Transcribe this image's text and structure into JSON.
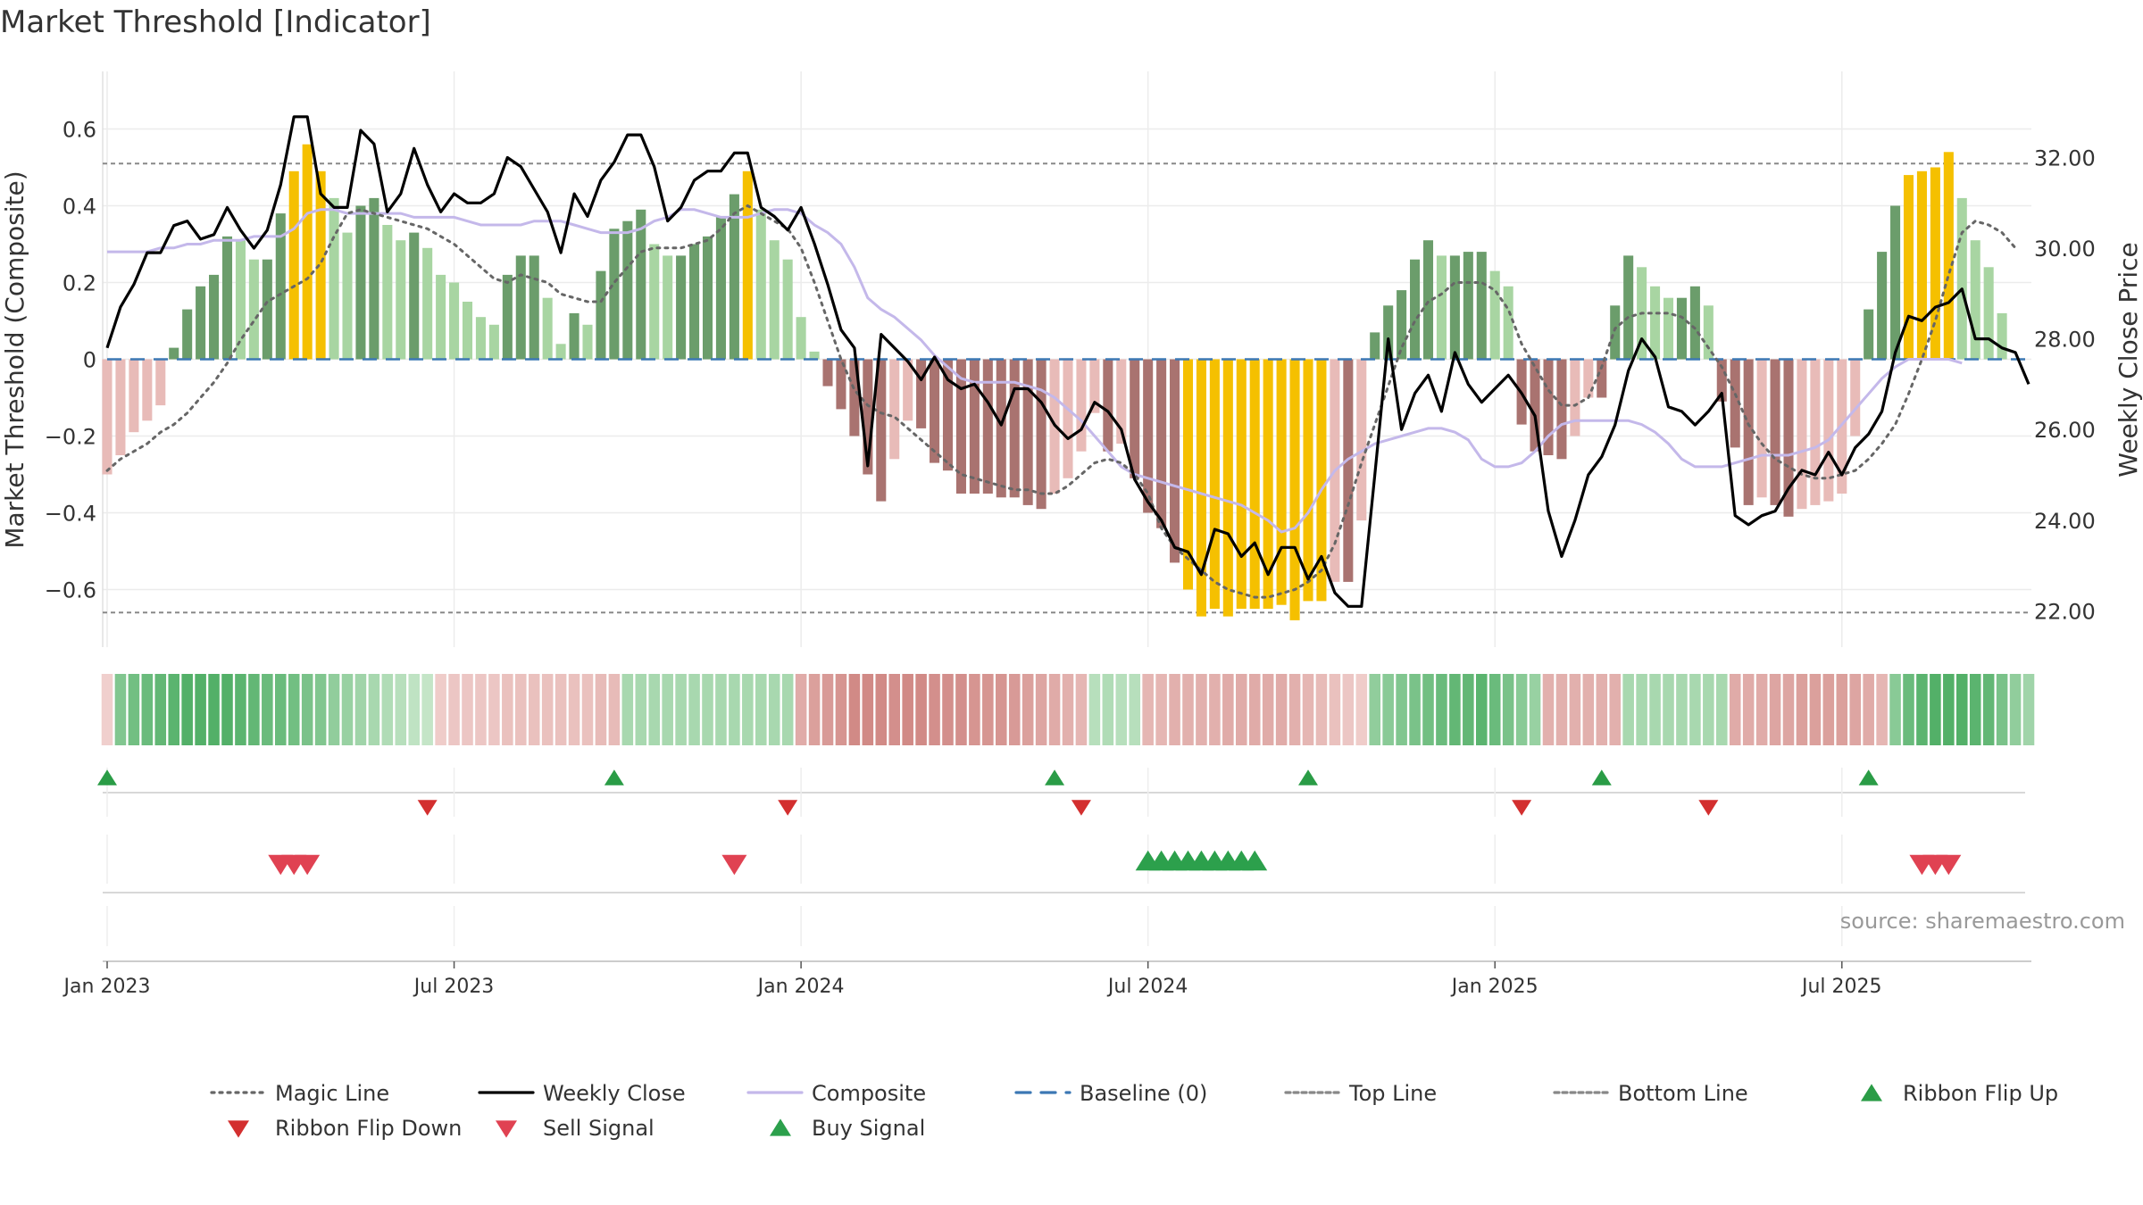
{
  "chart_data": {
    "type": "bar",
    "title": "Market Threshold [Indicator]",
    "ylabel": "Market Threshold (Composite)",
    "y2label": "Weekly Close Price",
    "ylim": [
      -0.75,
      0.75
    ],
    "y2lim": [
      21.2,
      33.9
    ],
    "yticks": [
      "0.6",
      "0.4",
      "0.2",
      "0",
      "−0.2",
      "−0.4",
      "−0.6"
    ],
    "ytick_values": [
      0.6,
      0.4,
      0.2,
      0,
      -0.2,
      -0.4,
      -0.6
    ],
    "y2ticks": [
      "32.00",
      "30.00",
      "28.00",
      "26.00",
      "24.00",
      "22.00"
    ],
    "y2tick_values": [
      32,
      30,
      28,
      26,
      24,
      22
    ],
    "xticks": [
      "Jan 2023",
      "Jul 2023",
      "Jan 2024",
      "Jul 2024",
      "Jan 2025",
      "Jul 2025"
    ],
    "xtick_weeks": [
      0,
      26,
      52,
      78,
      104,
      130
    ],
    "top_line": 0.51,
    "bottom_line": -0.66,
    "source": "source: sharemaestro.com",
    "weeks": 145,
    "composite": [
      0.28,
      0.28,
      0.28,
      0.28,
      0.29,
      0.29,
      0.3,
      0.3,
      0.31,
      0.31,
      0.31,
      0.32,
      0.32,
      0.32,
      0.34,
      0.38,
      0.39,
      0.39,
      0.38,
      0.38,
      0.38,
      0.38,
      0.38,
      0.37,
      0.37,
      0.37,
      0.37,
      0.36,
      0.35,
      0.35,
      0.35,
      0.35,
      0.36,
      0.36,
      0.36,
      0.35,
      0.34,
      0.33,
      0.33,
      0.33,
      0.34,
      0.36,
      0.37,
      0.39,
      0.39,
      0.38,
      0.37,
      0.37,
      0.37,
      0.38,
      0.39,
      0.39,
      0.38,
      0.35,
      0.33,
      0.3,
      0.24,
      0.16,
      0.13,
      0.11,
      0.08,
      0.05,
      0.01,
      -0.02,
      -0.05,
      -0.06,
      -0.06,
      -0.06,
      -0.06,
      -0.07,
      -0.08,
      -0.1,
      -0.13,
      -0.16,
      -0.2,
      -0.24,
      -0.28,
      -0.3,
      -0.31,
      -0.32,
      -0.33,
      -0.34,
      -0.35,
      -0.36,
      -0.37,
      -0.38,
      -0.4,
      -0.42,
      -0.45,
      -0.44,
      -0.4,
      -0.34,
      -0.29,
      -0.26,
      -0.24,
      -0.22,
      -0.21,
      -0.2,
      -0.19,
      -0.18,
      -0.18,
      -0.19,
      -0.21,
      -0.26,
      -0.28,
      -0.28,
      -0.27,
      -0.24,
      -0.2,
      -0.17,
      -0.16,
      -0.16,
      -0.16,
      -0.16,
      -0.16,
      -0.17,
      -0.19,
      -0.22,
      -0.26,
      -0.28,
      -0.28,
      -0.28,
      -0.27,
      -0.26,
      -0.25,
      -0.25,
      -0.25,
      -0.24,
      -0.23,
      -0.21,
      -0.17,
      -0.13,
      -0.09,
      -0.05,
      -0.02,
      0,
      0,
      0,
      0,
      -0.01
    ],
    "bars": [
      -0.3,
      -0.25,
      -0.19,
      -0.16,
      -0.12,
      0.03,
      0.13,
      0.19,
      0.22,
      0.32,
      0.31,
      0.26,
      0.26,
      0.38,
      0.49,
      0.56,
      0.49,
      0.42,
      0.33,
      0.4,
      0.42,
      0.35,
      0.31,
      0.33,
      0.29,
      0.22,
      0.2,
      0.15,
      0.11,
      0.09,
      0.22,
      0.27,
      0.27,
      0.16,
      0.04,
      0.12,
      0.09,
      0.23,
      0.34,
      0.36,
      0.39,
      0.3,
      0.27,
      0.27,
      0.3,
      0.32,
      0.37,
      0.43,
      0.49,
      0.39,
      0.31,
      0.26,
      0.11,
      0.02,
      -0.07,
      -0.13,
      -0.2,
      -0.3,
      -0.37,
      -0.26,
      -0.16,
      -0.18,
      -0.27,
      -0.29,
      -0.35,
      -0.35,
      -0.35,
      -0.36,
      -0.36,
      -0.38,
      -0.39,
      -0.35,
      -0.31,
      -0.24,
      -0.14,
      -0.24,
      -0.22,
      -0.31,
      -0.4,
      -0.44,
      -0.53,
      -0.6,
      -0.67,
      -0.65,
      -0.67,
      -0.65,
      -0.65,
      -0.65,
      -0.64,
      -0.68,
      -0.63,
      -0.63,
      -0.58,
      -0.58,
      -0.42,
      0.07,
      0.14,
      0.18,
      0.26,
      0.31,
      0.27,
      0.27,
      0.28,
      0.28,
      0.23,
      0.19,
      -0.17,
      -0.24,
      -0.25,
      -0.26,
      -0.2,
      -0.1,
      -0.1,
      0.14,
      0.27,
      0.24,
      0.19,
      0.16,
      0.16,
      0.19,
      0.14,
      -0.11,
      -0.23,
      -0.38,
      -0.36,
      -0.38,
      -0.41,
      -0.39,
      -0.38,
      -0.37,
      -0.35,
      -0.2,
      0.13,
      0.28,
      0.4,
      0.48,
      0.49,
      0.5,
      0.54,
      0.42,
      0.31,
      0.24,
      0.12
    ],
    "bar_colors": {
      "strong_pos": "#6b9d6b",
      "weak_pos": "#a8d5a2",
      "peak": "#f5c000",
      "strong_neg": "#a97370",
      "weak_neg": "#e8bbb8"
    },
    "magic_line": [
      -0.29,
      -0.26,
      -0.24,
      -0.22,
      -0.19,
      -0.17,
      -0.14,
      -0.1,
      -0.06,
      -0.01,
      0.05,
      0.1,
      0.15,
      0.17,
      0.19,
      0.21,
      0.25,
      0.32,
      0.38,
      0.39,
      0.38,
      0.37,
      0.36,
      0.35,
      0.34,
      0.32,
      0.3,
      0.27,
      0.24,
      0.21,
      0.2,
      0.22,
      0.21,
      0.2,
      0.17,
      0.16,
      0.15,
      0.15,
      0.2,
      0.24,
      0.28,
      0.29,
      0.29,
      0.29,
      0.3,
      0.31,
      0.34,
      0.38,
      0.4,
      0.38,
      0.36,
      0.34,
      0.29,
      0.2,
      0.1,
      0,
      -0.08,
      -0.12,
      -0.14,
      -0.15,
      -0.18,
      -0.21,
      -0.24,
      -0.27,
      -0.3,
      -0.31,
      -0.32,
      -0.33,
      -0.34,
      -0.34,
      -0.35,
      -0.35,
      -0.33,
      -0.3,
      -0.27,
      -0.26,
      -0.27,
      -0.3,
      -0.35,
      -0.44,
      -0.49,
      -0.52,
      -0.55,
      -0.58,
      -0.6,
      -0.61,
      -0.62,
      -0.62,
      -0.61,
      -0.6,
      -0.58,
      -0.55,
      -0.48,
      -0.38,
      -0.27,
      -0.17,
      -0.07,
      0.03,
      0.1,
      0.15,
      0.17,
      0.2,
      0.2,
      0.2,
      0.18,
      0.13,
      0.04,
      -0.02,
      -0.08,
      -0.12,
      -0.12,
      -0.1,
      -0.02,
      0.08,
      0.11,
      0.12,
      0.12,
      0.12,
      0.11,
      0.08,
      0.03,
      -0.02,
      -0.09,
      -0.17,
      -0.22,
      -0.26,
      -0.28,
      -0.3,
      -0.31,
      -0.31,
      -0.3,
      -0.29,
      -0.26,
      -0.22,
      -0.17,
      -0.09,
      0,
      0.1,
      0.22,
      0.33,
      0.36,
      0.35,
      0.33,
      0.29
    ],
    "weekly_close": [
      27.8,
      28.7,
      29.2,
      29.9,
      29.9,
      30.5,
      30.6,
      30.2,
      30.3,
      30.9,
      30.4,
      30.0,
      30.4,
      31.4,
      32.9,
      32.9,
      31.2,
      30.9,
      30.9,
      32.6,
      32.3,
      30.8,
      31.2,
      32.2,
      31.4,
      30.8,
      31.2,
      31.0,
      31.0,
      31.2,
      32.0,
      31.8,
      31.3,
      30.8,
      29.9,
      31.2,
      30.7,
      31.5,
      31.9,
      32.5,
      32.5,
      31.8,
      30.6,
      30.9,
      31.5,
      31.7,
      31.7,
      32.1,
      32.1,
      30.9,
      30.7,
      30.4,
      30.9,
      30.1,
      29.2,
      28.2,
      27.8,
      25.2,
      28.1,
      27.8,
      27.5,
      27.1,
      27.6,
      27.1,
      26.9,
      27.0,
      26.6,
      26.1,
      26.9,
      26.9,
      26.6,
      26.1,
      25.8,
      26.0,
      26.6,
      26.4,
      26.0,
      24.9,
      24.4,
      24.0,
      23.4,
      23.3,
      22.8,
      23.8,
      23.7,
      23.2,
      23.5,
      22.8,
      23.4,
      23.4,
      22.7,
      23.2,
      22.4,
      22.1,
      22.1,
      25.0,
      28.0,
      26.0,
      26.8,
      27.2,
      26.4,
      27.7,
      27.0,
      26.6,
      26.9,
      27.2,
      26.8,
      26.3,
      24.2,
      23.2,
      24.0,
      25.0,
      25.4,
      26.1,
      27.3,
      28.0,
      27.6,
      26.5,
      26.4,
      26.1,
      26.4,
      26.8,
      24.1,
      23.9,
      24.1,
      24.2,
      24.7,
      25.1,
      25.0,
      25.5,
      25.0,
      25.6,
      25.9,
      26.4,
      27.7,
      28.5,
      28.4,
      28.7,
      28.8,
      29.1,
      28.0,
      28.0,
      27.8,
      27.7,
      27.0
    ],
    "ribbon": [
      -0.12,
      0.55,
      0.65,
      0.7,
      0.75,
      0.8,
      0.85,
      0.85,
      0.85,
      0.85,
      0.8,
      0.75,
      0.7,
      0.7,
      0.65,
      0.6,
      0.55,
      0.45,
      0.4,
      0.35,
      0.3,
      0.25,
      0.2,
      0.15,
      0.12,
      -0.15,
      -0.2,
      -0.2,
      -0.2,
      -0.2,
      -0.25,
      -0.25,
      -0.25,
      -0.25,
      -0.25,
      -0.25,
      -0.25,
      -0.3,
      -0.3,
      0.3,
      0.3,
      0.3,
      0.3,
      0.3,
      0.3,
      0.3,
      0.3,
      0.3,
      0.3,
      0.3,
      0.3,
      0.3,
      -0.45,
      -0.55,
      -0.6,
      -0.65,
      -0.75,
      -0.75,
      -0.75,
      -0.7,
      -0.75,
      -0.75,
      -0.7,
      -0.7,
      -0.7,
      -0.65,
      -0.65,
      -0.65,
      -0.6,
      -0.55,
      -0.5,
      -0.45,
      -0.4,
      -0.35,
      0.2,
      0.25,
      0.2,
      0.2,
      -0.35,
      -0.35,
      -0.4,
      -0.4,
      -0.4,
      -0.4,
      -0.45,
      -0.45,
      -0.45,
      -0.45,
      -0.45,
      -0.4,
      -0.35,
      -0.3,
      -0.25,
      -0.2,
      -0.15,
      0.45,
      0.5,
      0.55,
      0.6,
      0.65,
      0.7,
      0.75,
      0.75,
      0.8,
      0.7,
      0.6,
      0.5,
      0.4,
      -0.4,
      -0.4,
      -0.4,
      -0.4,
      -0.4,
      -0.4,
      0.3,
      0.3,
      0.3,
      0.3,
      0.3,
      0.3,
      0.3,
      0.3,
      -0.45,
      -0.45,
      -0.45,
      -0.5,
      -0.5,
      -0.55,
      -0.55,
      -0.55,
      -0.55,
      -0.5,
      -0.45,
      -0.35,
      0.5,
      0.7,
      0.8,
      0.85,
      0.85,
      0.85,
      0.8,
      0.75,
      0.6,
      0.45,
      0.35
    ],
    "ribbon_flip_up_weeks": [
      0,
      38,
      71,
      90,
      112,
      132
    ],
    "ribbon_flip_down_weeks": [
      24,
      51,
      73,
      106,
      120
    ],
    "sell_signal_weeks": [
      13,
      14,
      15,
      47,
      136,
      137,
      138
    ],
    "buy_signal_weeks": [
      78,
      79,
      80,
      81,
      82,
      83,
      84,
      85,
      86
    ],
    "legend": [
      {
        "label": "Magic Line",
        "kind": "dotted",
        "color": "#666666"
      },
      {
        "label": "Weekly Close",
        "kind": "solid",
        "color": "#000000"
      },
      {
        "label": "Composite",
        "kind": "solid",
        "color": "#c4b8ea"
      },
      {
        "label": "Baseline (0)",
        "kind": "dashed",
        "color": "#3c78b4"
      },
      {
        "label": "Top Line",
        "kind": "finedash",
        "color": "#888888"
      },
      {
        "label": "Bottom Line",
        "kind": "finedash",
        "color": "#888888"
      },
      {
        "label": "Ribbon Flip Up",
        "kind": "tri-up",
        "color": "#2a9c46"
      },
      {
        "label": "Ribbon Flip Down",
        "kind": "tri-down",
        "color": "#d32f2f"
      },
      {
        "label": "Sell Signal",
        "kind": "tri-down",
        "color": "#e04252"
      },
      {
        "label": "Buy Signal",
        "kind": "tri-up",
        "color": "#2ca04c"
      }
    ],
    "colors": {
      "composite": "#c4b8ea",
      "weekly_close": "#000000",
      "magic": "#666666",
      "baseline": "#3c78b4",
      "levels": "#888888",
      "grid": "#ececec",
      "flip_up": "#2a9c46",
      "flip_down": "#d32f2f",
      "sell": "#e04252",
      "buy": "#2ca04c"
    }
  }
}
